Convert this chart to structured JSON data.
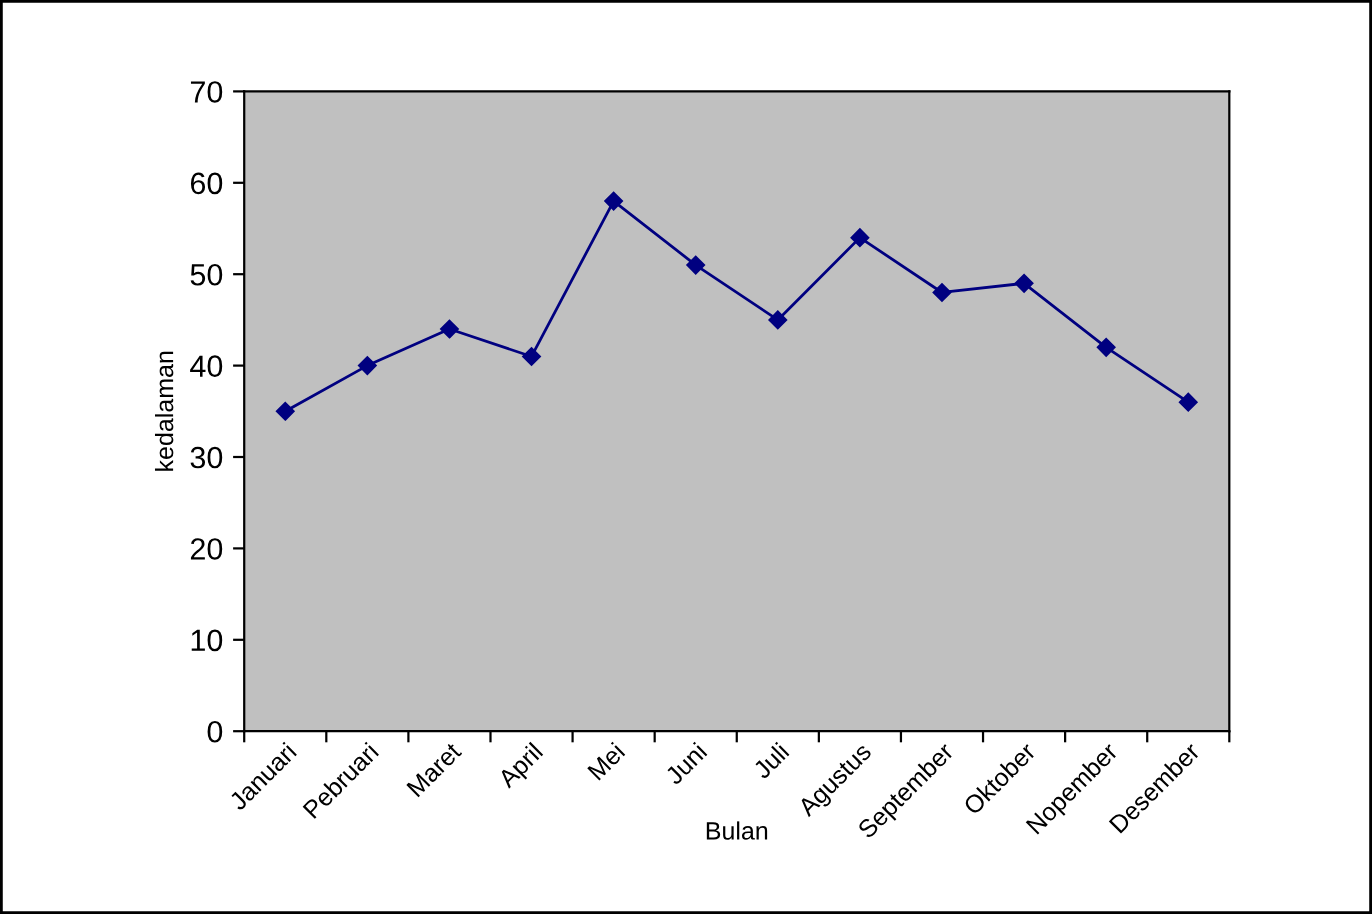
{
  "chart_data": {
    "type": "line",
    "xlabel": "Bulan",
    "ylabel": "kedalaman",
    "categories": [
      "Januari",
      "Pebruari",
      "Maret",
      "April",
      "Mei",
      "Juni",
      "Juli",
      "Agustus",
      "September",
      "Oktober",
      "Nopember",
      "Desember"
    ],
    "series": [
      {
        "color": "#000080",
        "values": [
          35,
          40,
          44,
          41,
          58,
          51,
          45,
          54,
          48,
          49,
          42,
          36
        ]
      }
    ],
    "ylim": [
      0,
      70
    ],
    "yticks": [
      0,
      10,
      20,
      30,
      40,
      50,
      60,
      70
    ],
    "grid": false,
    "marker": "diamond",
    "line_style": "solid"
  }
}
